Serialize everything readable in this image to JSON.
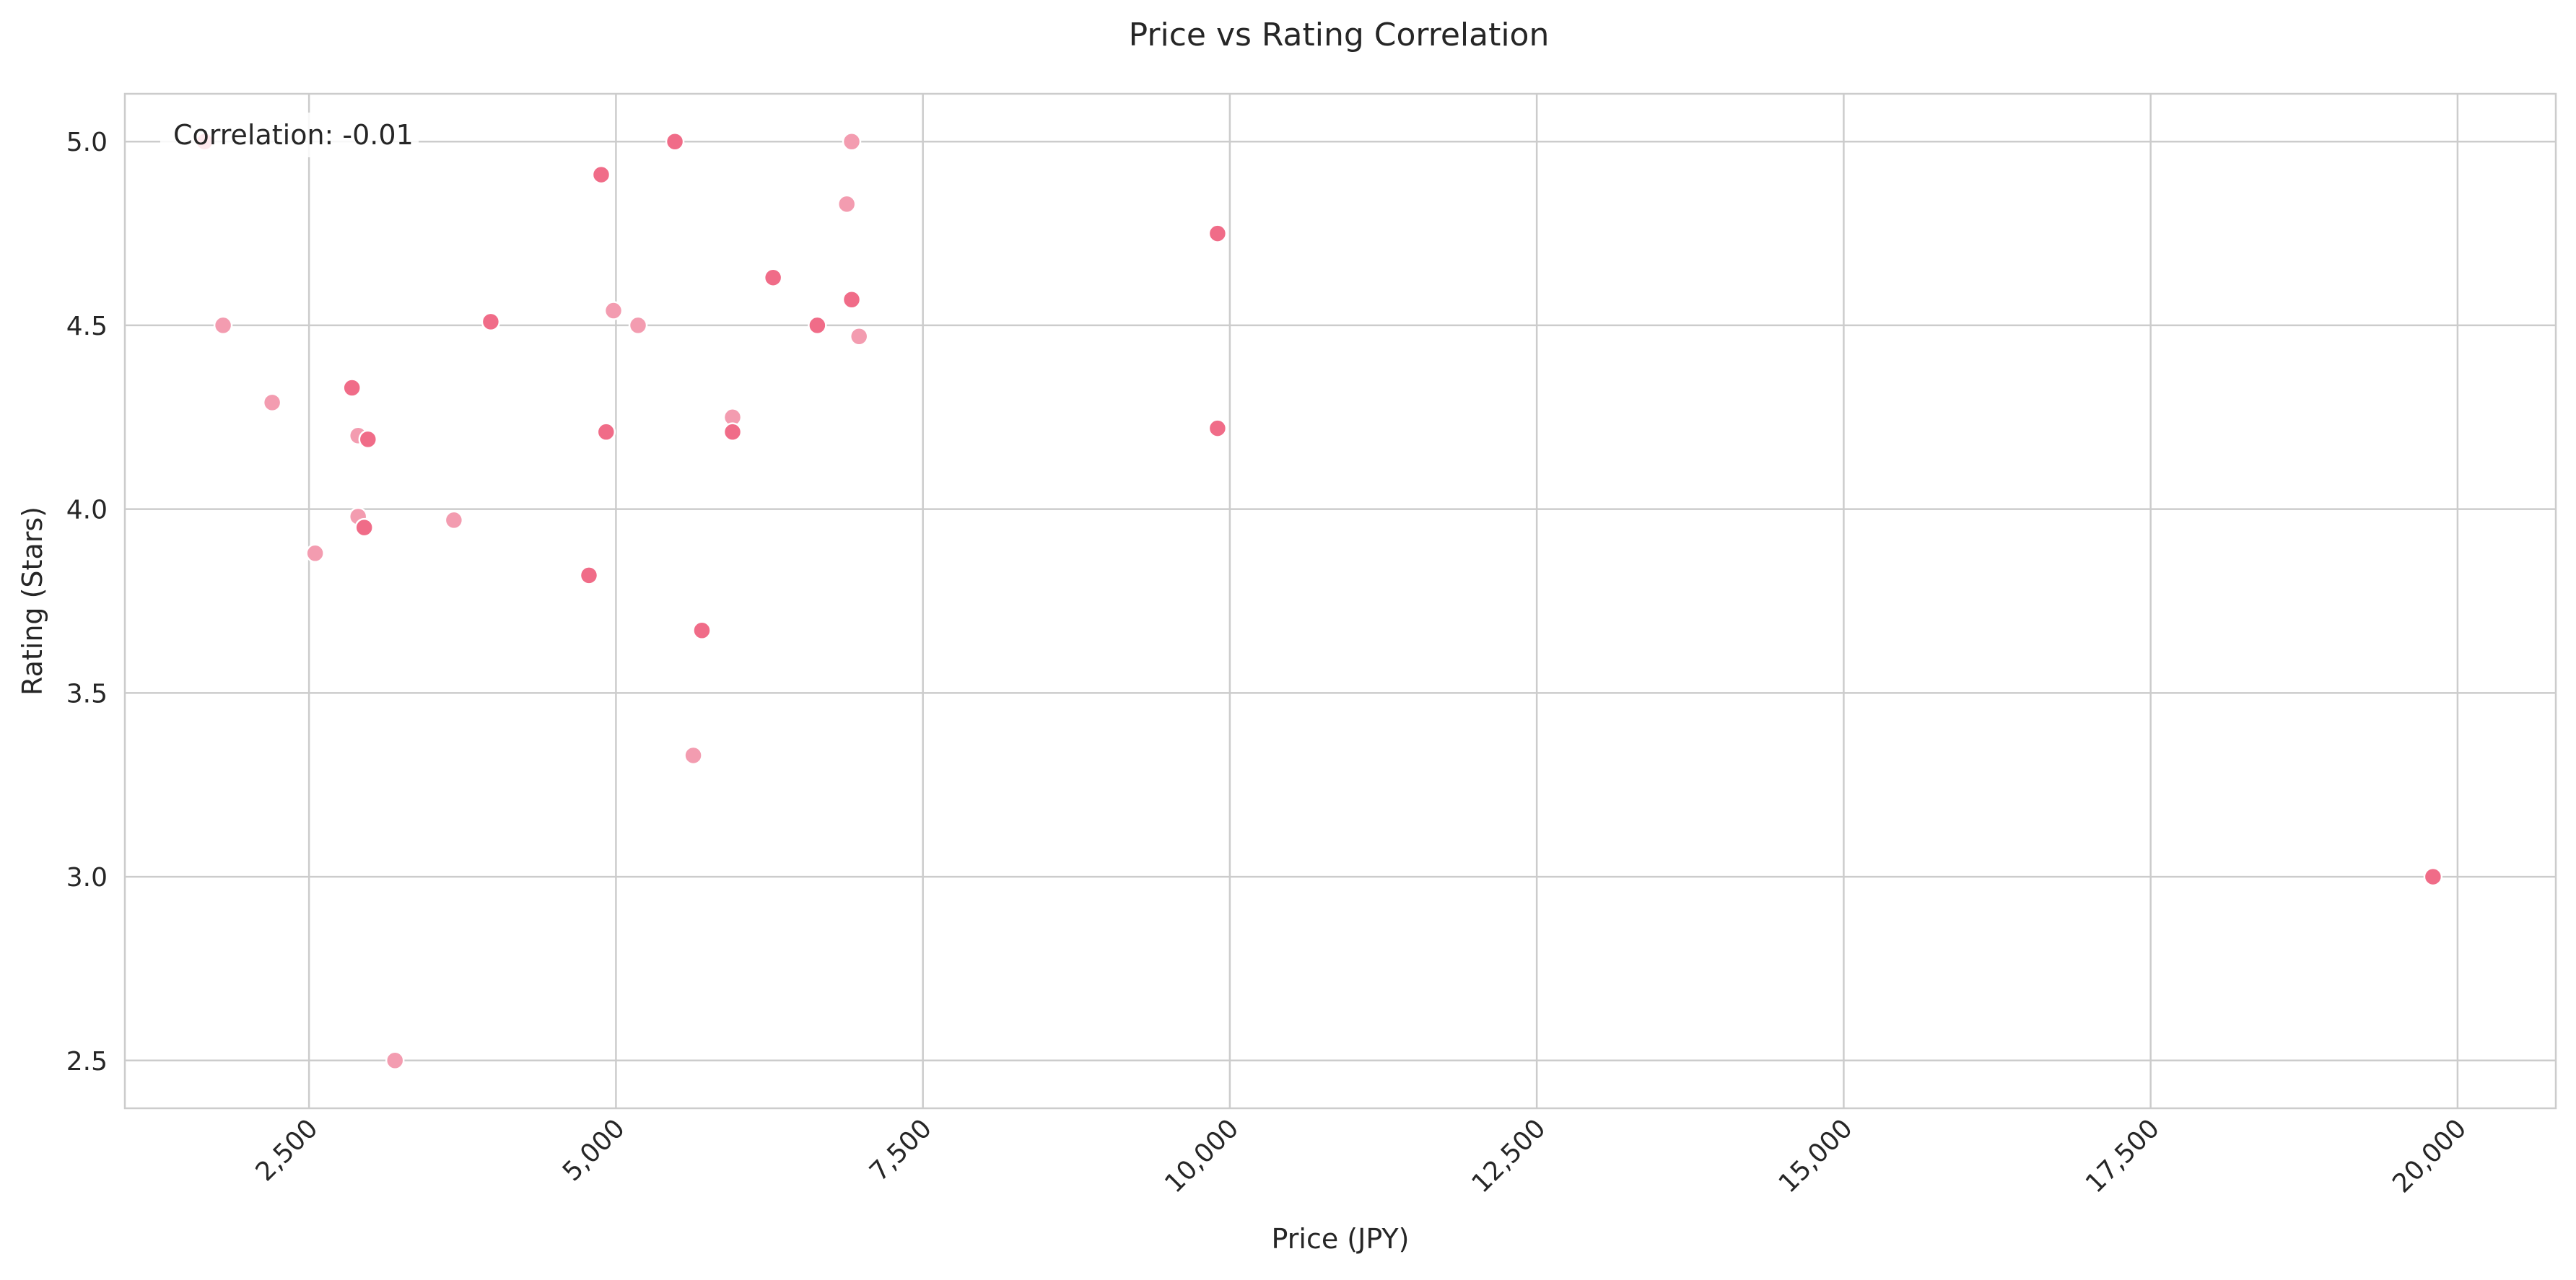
{
  "chart_data": {
    "type": "scatter",
    "title": "Price vs Rating Correlation",
    "xlabel": "Price (JPY)",
    "ylabel": "Rating (Stars)",
    "xlim": [
      1000,
      20800
    ],
    "ylim": [
      2.37,
      5.13
    ],
    "x_ticks": [
      2500,
      5000,
      7500,
      10000,
      12500,
      15000,
      17500,
      20000
    ],
    "x_tick_labels": [
      "2,500",
      "5,000",
      "7,500",
      "10,000",
      "12,500",
      "15,000",
      "17,500",
      "20,000"
    ],
    "y_ticks": [
      2.5,
      3.0,
      3.5,
      4.0,
      4.5,
      5.0
    ],
    "y_tick_labels": [
      "2.5",
      "3.0",
      "3.5",
      "4.0",
      "4.5",
      "5.0"
    ],
    "grid": true,
    "annotation": "Correlation: -0.01",
    "point_colors": {
      "dark": "#f06c88",
      "light": "#f39cb0"
    },
    "points": [
      {
        "x": 1650,
        "y": 5.0,
        "shade": "dark"
      },
      {
        "x": 1800,
        "y": 4.5,
        "shade": "light"
      },
      {
        "x": 2200,
        "y": 4.29,
        "shade": "light"
      },
      {
        "x": 2550,
        "y": 3.88,
        "shade": "light"
      },
      {
        "x": 2850,
        "y": 4.33,
        "shade": "dark"
      },
      {
        "x": 2900,
        "y": 4.2,
        "shade": "light"
      },
      {
        "x": 2900,
        "y": 3.98,
        "shade": "light"
      },
      {
        "x": 2950,
        "y": 3.95,
        "shade": "dark"
      },
      {
        "x": 2980,
        "y": 4.19,
        "shade": "dark"
      },
      {
        "x": 3200,
        "y": 2.5,
        "shade": "light"
      },
      {
        "x": 3680,
        "y": 3.97,
        "shade": "light"
      },
      {
        "x": 3980,
        "y": 4.51,
        "shade": "dark"
      },
      {
        "x": 4780,
        "y": 3.82,
        "shade": "dark"
      },
      {
        "x": 4880,
        "y": 4.91,
        "shade": "dark"
      },
      {
        "x": 4920,
        "y": 4.21,
        "shade": "dark"
      },
      {
        "x": 4980,
        "y": 4.54,
        "shade": "light"
      },
      {
        "x": 5180,
        "y": 4.5,
        "shade": "light"
      },
      {
        "x": 5480,
        "y": 5.0,
        "shade": "dark"
      },
      {
        "x": 5630,
        "y": 3.33,
        "shade": "light"
      },
      {
        "x": 5700,
        "y": 3.67,
        "shade": "dark"
      },
      {
        "x": 5950,
        "y": 4.25,
        "shade": "light"
      },
      {
        "x": 5950,
        "y": 4.21,
        "shade": "dark"
      },
      {
        "x": 6280,
        "y": 4.63,
        "shade": "dark"
      },
      {
        "x": 6640,
        "y": 4.5,
        "shade": "dark"
      },
      {
        "x": 6880,
        "y": 4.83,
        "shade": "light"
      },
      {
        "x": 6920,
        "y": 5.0,
        "shade": "light"
      },
      {
        "x": 6920,
        "y": 4.57,
        "shade": "dark"
      },
      {
        "x": 6980,
        "y": 4.47,
        "shade": "light"
      },
      {
        "x": 9900,
        "y": 4.75,
        "shade": "dark"
      },
      {
        "x": 9900,
        "y": 4.22,
        "shade": "dark"
      },
      {
        "x": 19800,
        "y": 3.0,
        "shade": "dark"
      }
    ]
  }
}
